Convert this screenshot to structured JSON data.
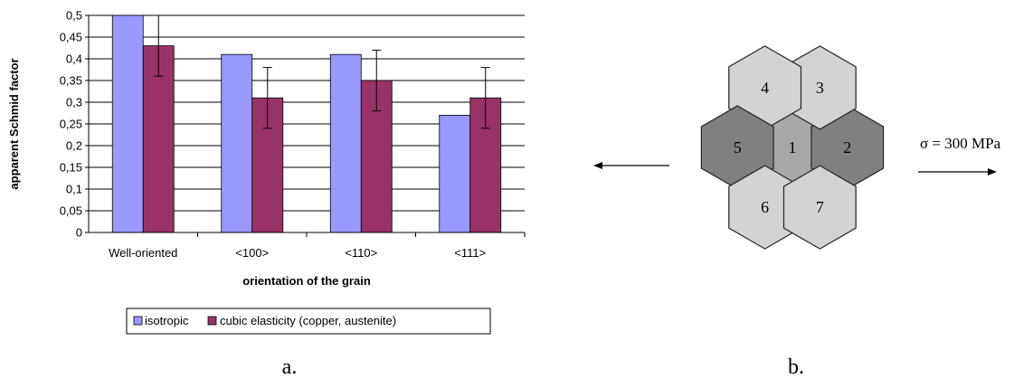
{
  "chart_data": {
    "type": "bar",
    "categories": [
      "Well-oriented",
      "<100>",
      "<110>",
      "<111>"
    ],
    "series": [
      {
        "name": "isotropic",
        "color": "#9999ff",
        "values": [
          0.5,
          0.41,
          0.41,
          0.27
        ]
      },
      {
        "name": "cubic elasticity (copper, austenite)",
        "color": "#993366",
        "values": [
          0.43,
          0.31,
          0.35,
          0.31
        ],
        "error_low": [
          0.36,
          0.24,
          0.28,
          0.24
        ],
        "error_high": [
          0.5,
          0.38,
          0.42,
          0.38
        ]
      }
    ],
    "ylabel": "apparent Schmid factor",
    "xlabel": "orientation of the grain",
    "ylim": [
      0,
      0.5
    ],
    "yticks": [
      "0",
      "0,05",
      "0,1",
      "0,15",
      "0,2",
      "0,25",
      "0,3",
      "0,35",
      "0,4",
      "0,45",
      "0,5"
    ],
    "grid": true,
    "legend_position": "bottom"
  },
  "captions": {
    "a": "a.",
    "b": "b."
  },
  "diagram": {
    "grains": [
      {
        "label": "1",
        "shade": "#a8a8a8"
      },
      {
        "label": "2",
        "shade": "#808080"
      },
      {
        "label": "3",
        "shade": "#d3d3d3"
      },
      {
        "label": "4",
        "shade": "#d3d3d3"
      },
      {
        "label": "5",
        "shade": "#808080"
      },
      {
        "label": "6",
        "shade": "#d3d3d3"
      },
      {
        "label": "7",
        "shade": "#d3d3d3"
      }
    ],
    "stress_label": "σ = 300 MPa"
  }
}
